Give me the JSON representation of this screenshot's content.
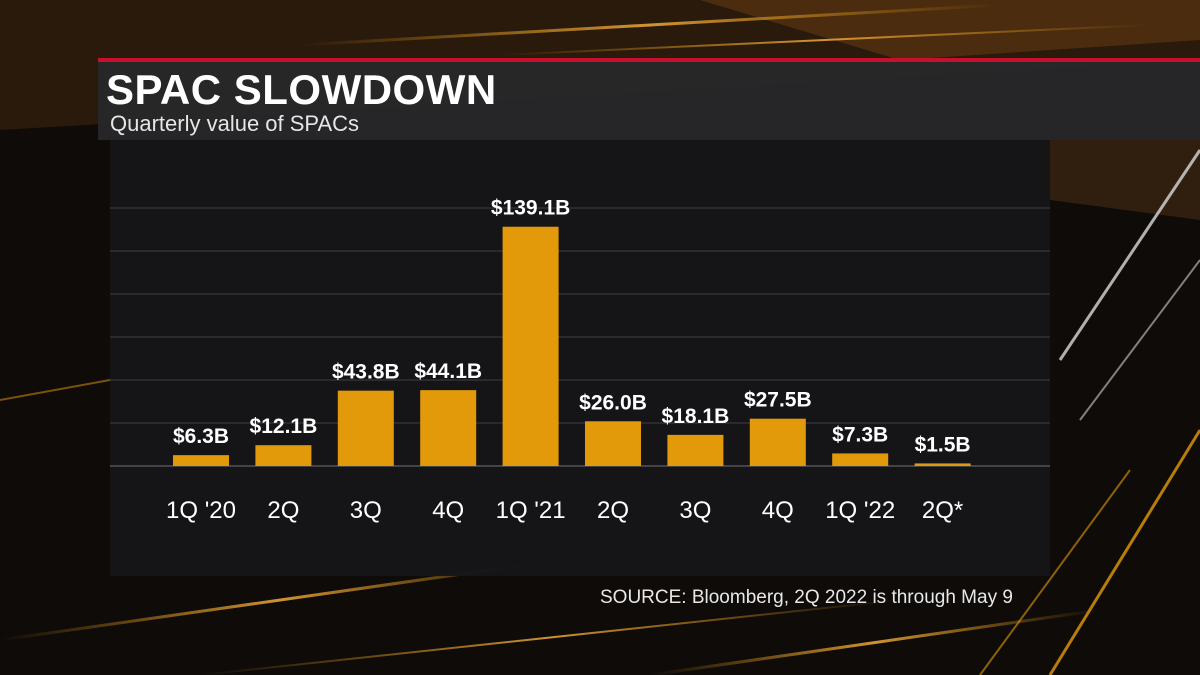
{
  "header": {
    "title": "SPAC SLOWDOWN",
    "subtitle": "Quarterly value of SPACs"
  },
  "footer": {
    "source": "SOURCE: Bloomberg, 2Q 2022 is through May 9"
  },
  "colors": {
    "bar": "#e39a0a",
    "accent": "#c8102e"
  },
  "chart_data": {
    "type": "bar",
    "categories": [
      "1Q '20",
      "2Q",
      "3Q",
      "4Q",
      "1Q '21",
      "2Q",
      "3Q",
      "4Q",
      "1Q '22",
      "2Q*"
    ],
    "values": [
      6.3,
      12.1,
      43.8,
      44.1,
      139.1,
      26.0,
      18.1,
      27.5,
      7.3,
      1.5
    ],
    "data_labels": [
      "$6.3B",
      "$12.1B",
      "$43.8B",
      "$44.1B",
      "$139.1B",
      "$26.0B",
      "$18.1B",
      "$27.5B",
      "$7.3B",
      "$1.5B"
    ],
    "ylim": [
      0,
      150
    ],
    "grid": true,
    "legend": "none"
  }
}
